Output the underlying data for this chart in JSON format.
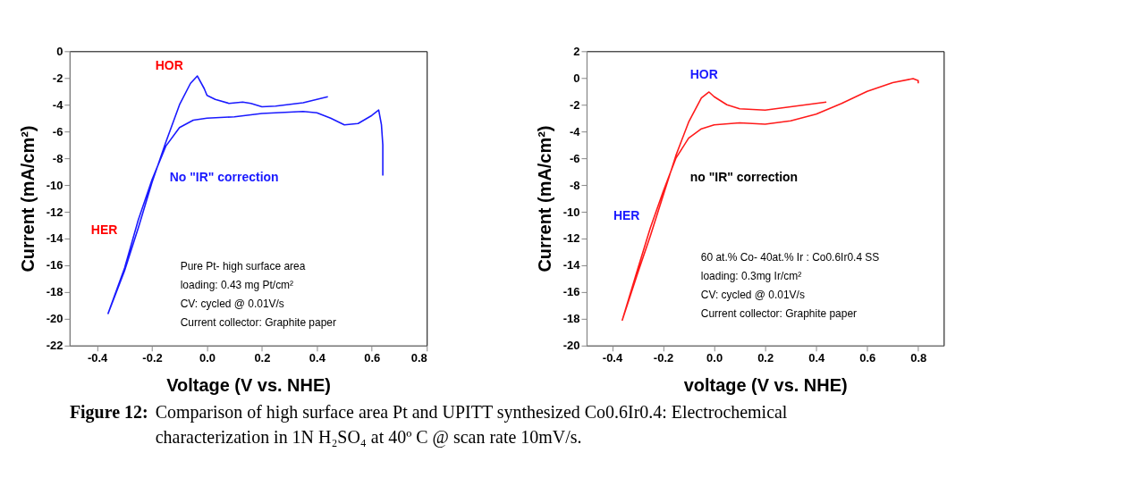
{
  "chart_data": [
    {
      "type": "line",
      "xlabel": "Voltage (V vs. NHE)",
      "ylabel": "Current (mA/cm²)",
      "xlim": [
        -0.5,
        0.8
      ],
      "ylim": [
        -22,
        0
      ],
      "xticks": [
        {
          "value": -0.4,
          "label": "-0.4"
        },
        {
          "value": -0.2,
          "label": "-0.2"
        },
        {
          "value": 0,
          "label": "0.0"
        },
        {
          "value": 0.2,
          "label": "0.2"
        },
        {
          "value": 0.4,
          "label": "0.4"
        },
        {
          "value": 0.6,
          "label": "0.6"
        },
        {
          "value": 0.8,
          "label": "0.8"
        }
      ],
      "yticks": [
        0,
        -2,
        -4,
        -6,
        -8,
        -10,
        -12,
        -14,
        -16,
        -18,
        -20,
        -22
      ],
      "grid": false,
      "series": [
        {
          "color": "#1a1aff",
          "x": [
            0.44,
            0.35,
            0.25,
            0.2,
            0.16,
            0.13,
            0.08,
            0.03,
            0.0,
            -0.01,
            -0.035,
            -0.06,
            -0.1,
            -0.15,
            -0.2,
            -0.25,
            -0.3,
            -0.36,
            -0.3,
            -0.25,
            -0.2,
            -0.15,
            -0.1,
            -0.05,
            0.0,
            0.1,
            0.2,
            0.35,
            0.4,
            0.45,
            0.5,
            0.55,
            0.6,
            0.625,
            0.635,
            0.64,
            0.64
          ],
          "values": [
            -3.4,
            -3.85,
            -4.1,
            -4.15,
            -3.9,
            -3.8,
            -3.9,
            -3.6,
            -3.3,
            -2.8,
            -1.85,
            -2.4,
            -4.0,
            -6.8,
            -9.8,
            -13.2,
            -16.4,
            -19.6,
            -16.2,
            -12.6,
            -9.6,
            -7.1,
            -5.7,
            -5.15,
            -5.0,
            -4.9,
            -4.65,
            -4.5,
            -4.6,
            -5.0,
            -5.5,
            -5.4,
            -4.8,
            -4.4,
            -5.5,
            -7.0,
            -9.3
          ]
        }
      ],
      "annotations": [
        "HOR",
        "HER",
        "No \"IR\" correction",
        "Pure Pt- high surface area",
        "loading: 0.43 mg Pt/cm²",
        "CV: cycled @ 0.01V/s",
        "Current collector: Graphite paper"
      ]
    },
    {
      "type": "line",
      "xlabel": "voltage (V vs. NHE)",
      "ylabel": "Current (mA/cm²)",
      "xlim": [
        -0.5,
        0.9
      ],
      "ylim": [
        -20,
        2
      ],
      "xticks": [
        {
          "value": -0.4,
          "label": "-0.4"
        },
        {
          "value": -0.2,
          "label": "-0.2"
        },
        {
          "value": 0,
          "label": "0.0"
        },
        {
          "value": 0.2,
          "label": "0.2"
        },
        {
          "value": 0.4,
          "label": "0.4"
        },
        {
          "value": 0.6,
          "label": "0.6"
        },
        {
          "value": 0.8,
          "label": "0.8"
        }
      ],
      "yticks": [
        2,
        0,
        -2,
        -4,
        -6,
        -8,
        -10,
        -12,
        -14,
        -16,
        -18,
        -20
      ],
      "grid": false,
      "series": [
        {
          "color": "#ff1a1a",
          "x": [
            0.44,
            0.3,
            0.2,
            0.1,
            0.05,
            0.0,
            -0.02,
            -0.05,
            -0.1,
            -0.15,
            -0.2,
            -0.25,
            -0.3,
            -0.36,
            -0.3,
            -0.25,
            -0.2,
            -0.15,
            -0.1,
            -0.05,
            0.0,
            0.1,
            0.2,
            0.3,
            0.4,
            0.5,
            0.6,
            0.7,
            0.78,
            0.8,
            0.8
          ],
          "values": [
            -1.8,
            -2.15,
            -2.4,
            -2.3,
            -2.0,
            -1.4,
            -1.05,
            -1.5,
            -3.3,
            -5.8,
            -8.8,
            -11.8,
            -14.6,
            -18.1,
            -14.3,
            -11.2,
            -8.5,
            -6.0,
            -4.5,
            -3.8,
            -3.5,
            -3.35,
            -3.45,
            -3.2,
            -2.7,
            -1.9,
            -1.0,
            -0.35,
            -0.05,
            -0.2,
            -0.4
          ]
        }
      ],
      "annotations": [
        "HOR",
        "HER",
        "no \"IR\" correction",
        "60 at.% Co- 40at.% Ir : Co0.6Ir0.4 SS",
        "loading: 0.3mg Ir/cm²",
        "CV: cycled @ 0.01V/s",
        "Current collector: Graphite paper"
      ]
    },
    {
      "type": "other",
      "annotations": [
        "Figure 12:",
        "Comparison of high surface area Pt and UPITT synthesized Co0.6Ir0.4: Electrochemical characterization in 1N H₂SO₄ at 40º C @ scan rate 10mV/s."
      ]
    }
  ]
}
